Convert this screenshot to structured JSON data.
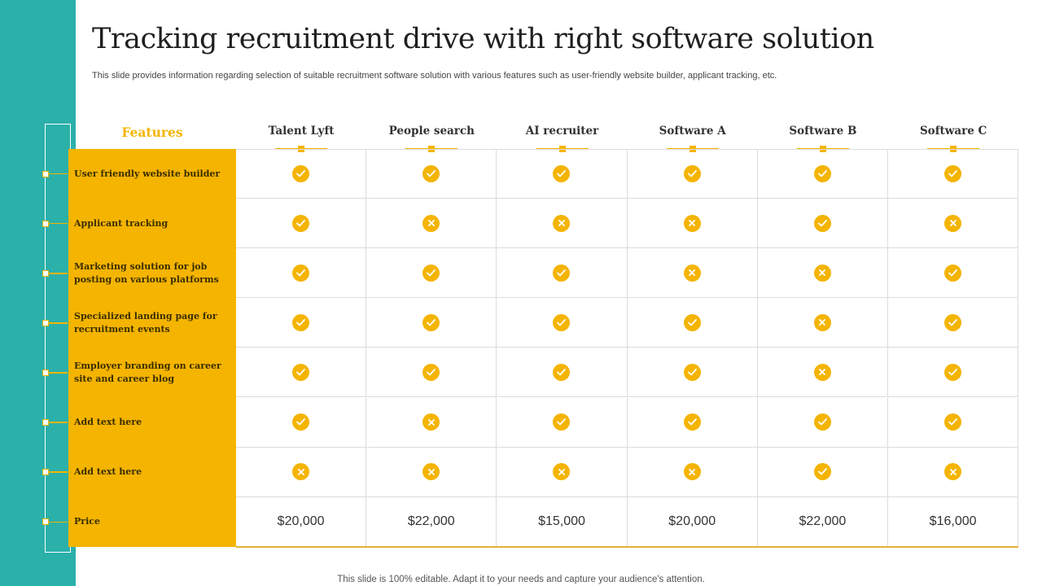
{
  "title": "Tracking recruitment drive with right software solution",
  "subtitle": "This slide provides information regarding selection of suitable recruitment software solution with various features such as user-friendly website builder, applicant tracking, etc.",
  "footer": "This slide is 100% editable. Adapt it to your needs and capture your audience's attention.",
  "table": {
    "features_header": "Features",
    "columns": [
      "Talent Lyft",
      "People search",
      "AI recruiter",
      "Software A",
      "Software B",
      "Software C"
    ],
    "rows": [
      {
        "feature": "User friendly website builder",
        "values": [
          "check",
          "check",
          "check",
          "check",
          "check",
          "check"
        ]
      },
      {
        "feature": "Applicant tracking",
        "values": [
          "check",
          "cross",
          "cross",
          "cross",
          "check",
          "cross"
        ]
      },
      {
        "feature": "Marketing solution  for job posting on various platforms",
        "values": [
          "check",
          "check",
          "check",
          "cross",
          "cross",
          "check"
        ]
      },
      {
        "feature": "Specialized landing page for recruitment events",
        "values": [
          "check",
          "check",
          "check",
          "check",
          "cross",
          "check"
        ]
      },
      {
        "feature": "Employer branding on career site and career blog",
        "values": [
          "check",
          "check",
          "check",
          "check",
          "cross",
          "check"
        ]
      },
      {
        "feature": "Add text here",
        "values": [
          "check",
          "cross",
          "check",
          "check",
          "check",
          "check"
        ]
      },
      {
        "feature": "Add text here",
        "values": [
          "cross",
          "cross",
          "cross",
          "cross",
          "check",
          "cross"
        ]
      }
    ],
    "price_label": "Price",
    "prices": [
      "$20,000",
      "$22,000",
      "$15,000",
      "$20,000",
      "$22,000",
      "$16,000"
    ]
  },
  "colors": {
    "accent": "#f4b400",
    "teal": "#2bb0aa",
    "grid": "#dcdcdc"
  },
  "icons": {
    "check": "check-icon",
    "cross": "cross-icon"
  }
}
